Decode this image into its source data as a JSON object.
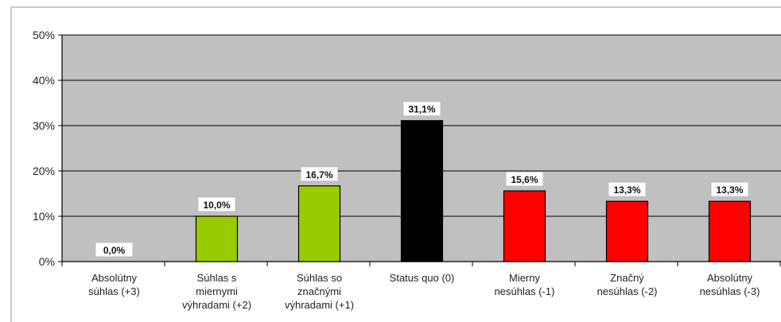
{
  "chart_data": {
    "type": "bar",
    "title": "",
    "xlabel": "",
    "ylabel": "",
    "ylim": [
      0,
      50
    ],
    "y_ticks": [
      "0%",
      "10%",
      "20%",
      "30%",
      "40%",
      "50%"
    ],
    "y_tick_values": [
      0,
      10,
      20,
      30,
      40,
      50
    ],
    "grid": true,
    "plot_background": "#c0c0c0",
    "categories": [
      [
        "Absolútny",
        "súhlas (+3)"
      ],
      [
        "Súhlas s",
        "miernymi",
        "výhradami (+2)"
      ],
      [
        "Súhlas so",
        "značnými",
        "výhradami (+1)"
      ],
      [
        "Status quo (0)"
      ],
      [
        "Mierny",
        "nesúhlas (-1)"
      ],
      [
        "Značný",
        "nesúhlas (-2)"
      ],
      [
        "Absolútny",
        "nesúhlas (-3)"
      ]
    ],
    "values": [
      0.0,
      10.0,
      16.7,
      31.1,
      15.6,
      13.3,
      13.3
    ],
    "value_labels": [
      "0,0%",
      "10,0%",
      "16,7%",
      "31,1%",
      "15,6%",
      "13,3%",
      "13,3%"
    ],
    "bar_colors": [
      "#99cc00",
      "#99cc00",
      "#99cc00",
      "#000000",
      "#ff0000",
      "#ff0000",
      "#ff0000"
    ]
  }
}
